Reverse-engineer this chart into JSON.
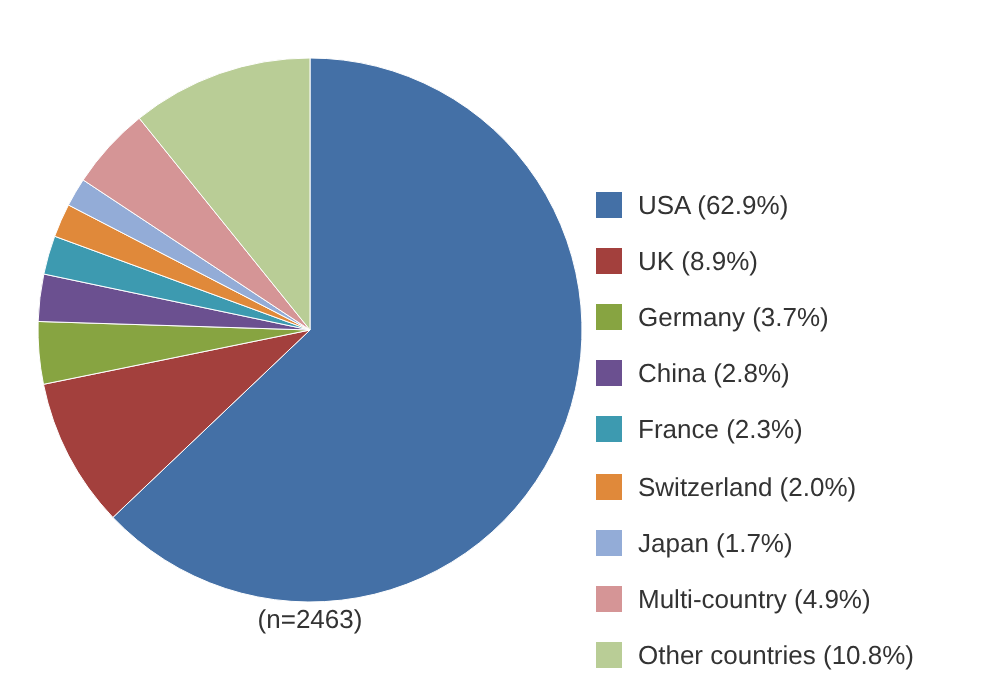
{
  "chart_data": {
    "type": "pie",
    "categories": [
      "USA (62.9%)",
      "UK (8.9%)",
      "Germany (3.7%)",
      "China (2.8%)",
      "France (2.3%)",
      "Switzerland (2.0%)",
      "Japan (1.7%)",
      "Multi-country (4.9%)",
      "Other countries (10.8%)"
    ],
    "values": [
      62.9,
      8.9,
      3.7,
      2.8,
      2.3,
      2.0,
      1.7,
      4.9,
      10.8
    ],
    "colors": [
      "#4470a6",
      "#a3403d",
      "#87a441",
      "#6b5090",
      "#3d9ab0",
      "#e0893a",
      "#93acd7",
      "#d59596",
      "#b9cd96"
    ],
    "legend": "right",
    "annotations": [
      "(n=2463)"
    ]
  }
}
